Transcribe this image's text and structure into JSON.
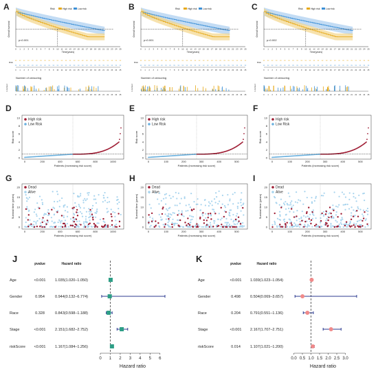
{
  "panel_letters": [
    "A",
    "B",
    "C",
    "D",
    "E",
    "F",
    "G",
    "H",
    "I",
    "J",
    "K"
  ],
  "km_panels": [
    {
      "letter": "A",
      "pvalue": "p<0.001",
      "legend": [
        "Risk",
        "High risk",
        "Low risk"
      ],
      "ylabel": "Overall survival",
      "xlabel": "Time(years)",
      "risk_label": "Risk",
      "censor_label": "n.censor",
      "censor_title": "Number of censoring"
    },
    {
      "letter": "B",
      "pvalue": "p<0.001",
      "legend": [
        "Risk",
        "High risk",
        "Low risk"
      ],
      "ylabel": "Overall survival",
      "xlabel": "Time(years)",
      "risk_label": "Risk",
      "censor_label": "n.censor",
      "censor_title": "Number of censoring"
    },
    {
      "letter": "C",
      "pvalue": "p=0.002",
      "legend": [
        "Risk",
        "High risk",
        "Low risk"
      ],
      "ylabel": "Overall survival",
      "xlabel": "Time(years)",
      "risk_label": "Risk",
      "censor_label": "n.censor",
      "censor_title": "Number of censoring"
    }
  ],
  "risk_panels": [
    {
      "letter": "D",
      "ylabel": "Risk score",
      "xlabel": "Patients (increasing risk socre)",
      "legend": [
        "High risk",
        "Low Risk"
      ],
      "xticks": [
        "0",
        "200",
        "400",
        "600",
        "800",
        "1000"
      ],
      "yticks": [
        "0",
        "2",
        "4",
        "6",
        "8",
        "10"
      ],
      "n": 1090
    },
    {
      "letter": "E",
      "ylabel": "Risk score",
      "xlabel": "Patients (increasing risk socre)",
      "legend": [
        "High risk",
        "Low Risk"
      ],
      "xticks": [
        "0",
        "100",
        "200",
        "300",
        "400",
        "500"
      ],
      "yticks": [
        "0",
        "2",
        "4",
        "6",
        "8",
        "10"
      ],
      "n": 545
    },
    {
      "letter": "F",
      "ylabel": "Risk score",
      "xlabel": "Patients (increasing risk socre)",
      "legend": [
        "High risk",
        "Low Risk"
      ],
      "xticks": [
        "0",
        "100",
        "200",
        "300",
        "400",
        "500"
      ],
      "yticks": [
        "0",
        "2",
        "4",
        "6",
        "8",
        "10"
      ],
      "n": 545
    }
  ],
  "surv_panels": [
    {
      "letter": "G",
      "ylabel": "Survival time (years)",
      "xlabel": "Patients (increasing risk socre)",
      "legend": [
        "Dead",
        "Alive"
      ],
      "xticks": [
        "0",
        "200",
        "400",
        "600",
        "800",
        "1000"
      ],
      "yticks": [
        "0",
        "5",
        "10",
        "15",
        "20"
      ],
      "n": 1090
    },
    {
      "letter": "H",
      "ylabel": "Survival time (years)",
      "xlabel": "Patients (increasing risk socre)",
      "legend": [
        "Dead",
        "Alive"
      ],
      "xticks": [
        "0",
        "100",
        "200",
        "300",
        "400",
        "500"
      ],
      "yticks": [
        "0",
        "5",
        "10",
        "15",
        "20"
      ],
      "n": 545
    },
    {
      "letter": "I",
      "ylabel": "Survival time (years)",
      "xlabel": "Patients (increasing risk socre)",
      "legend": [
        "Dead",
        "Alive"
      ],
      "xticks": [
        "0",
        "100",
        "200",
        "300",
        "400",
        "500"
      ],
      "yticks": [
        "0",
        "5",
        "10",
        "15",
        "20"
      ],
      "n": 545
    }
  ],
  "chart_data": [
    {
      "type": "forest",
      "panel": "J",
      "header": {
        "pvalue": "pvalue",
        "hr": "Hazard ratio"
      },
      "rows": [
        {
          "label": "Age",
          "pvalue": "<0.001",
          "hr_text": "1.035(1.020–1.050)",
          "hr": 1.035,
          "lo": 1.02,
          "hi": 1.05
        },
        {
          "label": "Gender",
          "pvalue": "0.954",
          "hr_text": "0.944(0.132–6.774)",
          "hr": 0.944,
          "lo": 0.132,
          "hi": 6.774
        },
        {
          "label": "Race",
          "pvalue": "0.328",
          "hr_text": "0.843(0.598–1.188)",
          "hr": 0.843,
          "lo": 0.598,
          "hi": 1.188
        },
        {
          "label": "Stage",
          "pvalue": "<0.001",
          "hr_text": "2.151(1.682–2.752)",
          "hr": 2.151,
          "lo": 1.682,
          "hi": 2.752
        },
        {
          "label": "riskScore",
          "pvalue": "<0.001",
          "hr_text": "1.167(1.084–1.256)",
          "hr": 1.167,
          "lo": 1.084,
          "hi": 1.256
        }
      ],
      "xlabel": "Hazard ratio",
      "xlim": [
        0,
        6.5
      ],
      "xticks": [
        0,
        1,
        2,
        3,
        4,
        5,
        6
      ],
      "ref": 1,
      "color": "#2e9e86"
    },
    {
      "type": "forest",
      "panel": "K",
      "header": {
        "pvalue": "pvalue",
        "hr": "Hazard ratio"
      },
      "rows": [
        {
          "label": "Age",
          "pvalue": "<0.001",
          "hr_text": "1.039(1.023–1.054)",
          "hr": 1.039,
          "lo": 1.023,
          "hi": 1.054
        },
        {
          "label": "Gender",
          "pvalue": "0.498",
          "hr_text": "0.504(0.069–3.657)",
          "hr": 0.504,
          "lo": 0.069,
          "hi": 3.657
        },
        {
          "label": "Race",
          "pvalue": "0.204",
          "hr_text": "0.791(0.551–1.136)",
          "hr": 0.791,
          "lo": 0.551,
          "hi": 1.136
        },
        {
          "label": "Stage",
          "pvalue": "<0.001",
          "hr_text": "2.167(1.707–2.751)",
          "hr": 2.167,
          "lo": 1.707,
          "hi": 2.751
        },
        {
          "label": "riskScore",
          "pvalue": "0.014",
          "hr_text": "1.107(1.021–1.200)",
          "hr": 1.107,
          "lo": 1.021,
          "hi": 1.2
        }
      ],
      "xlabel": "Hazard ratio",
      "xlim": [
        -0.3,
        3.7
      ],
      "xticks": [
        0.0,
        0.5,
        1.0,
        1.5,
        2.0,
        2.5,
        3.0
      ],
      "ref": 1,
      "color": "#f08a8a"
    }
  ],
  "colors": {
    "high": "#e6a817",
    "low": "#3b8fd6",
    "high_band": "#f3d58a",
    "low_band": "#a9cdef",
    "dead": "#9e1b32",
    "alive": "#a8d4ee",
    "riskhigh": "#9e1b32",
    "risklow": "#6ab0de",
    "ci": "#2b3a8f"
  }
}
